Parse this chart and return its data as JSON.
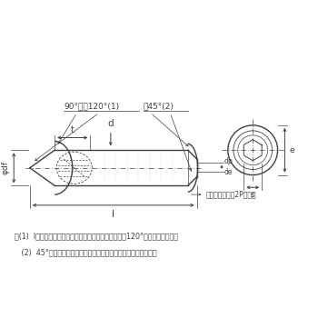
{
  "line_color": "#404040",
  "cone_angle_label": "90°又は120°(1)",
  "flat_angle_label": "絀45°(2)",
  "dim_t": "t",
  "dim_d": "d",
  "dim_l": "l",
  "dim_df": "φdf",
  "dim_dp": "dp",
  "dim_de": "de",
  "dim_e": "e",
  "dim_s": "s",
  "incomplete_thread": "不完全ねじ部（2P以下）",
  "note1": "注(1)  lが下の表に示す階段状の点線より短いものは、120°の面取りとする。",
  "note2": "   (2)  45°の角度は、おねじの谷の径より下の傾斜部に適用する。"
}
